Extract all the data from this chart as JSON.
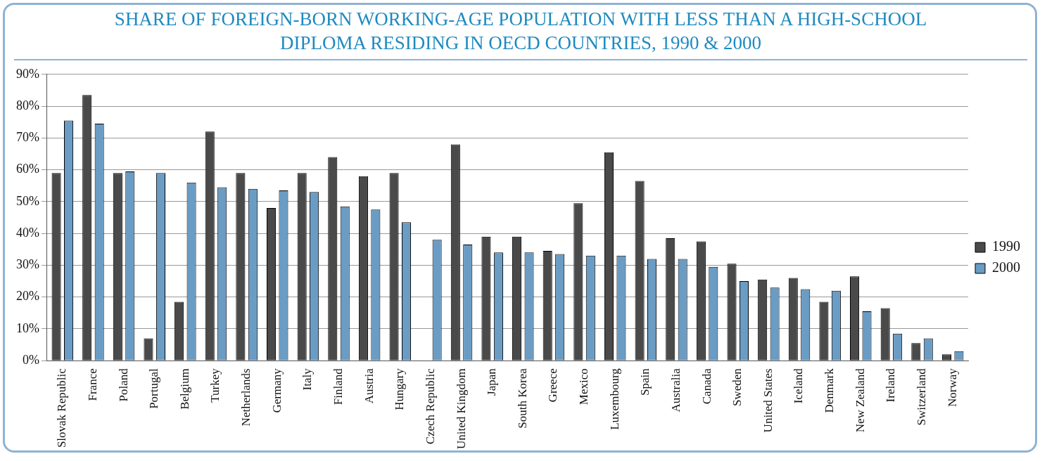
{
  "chart_data": {
    "type": "bar",
    "title": "SHARE OF FOREIGN-BORN WORKING-AGE POPULATION WITH LESS THAN A HIGH-SCHOOL DIPLOMA RESIDING IN OECD COUNTRIES, 1990 & 2000",
    "categories": [
      "Slovak Republic",
      "France",
      "Poland",
      "Portugal",
      "Belgium",
      "Turkey",
      "Netherlands",
      "Germany",
      "Italy",
      "Finland",
      "Austria",
      "Hungary",
      "Czech Republic",
      "United Kingdom",
      "Japan",
      "South Korea",
      "Greece",
      "Mexico",
      "Luxembourg",
      "Spain",
      "Australia",
      "Canada",
      "Sweden",
      "United States",
      "Iceland",
      "Denmark",
      "New Zealand",
      "Ireland",
      "Switzerland",
      "Norway"
    ],
    "series": [
      {
        "name": "1990",
        "color": "#4a4a4a",
        "values": [
          59,
          83.5,
          59,
          7,
          18.5,
          72,
          59,
          48,
          59,
          64,
          58,
          59,
          null,
          68,
          39,
          39,
          34.5,
          49.5,
          65.5,
          56.5,
          38.5,
          37.5,
          30.5,
          25.5,
          26,
          18.5,
          26.5,
          16.5,
          5.5,
          2
        ]
      },
      {
        "name": "2000",
        "color": "#6a9cc4",
        "values": [
          75.5,
          74.5,
          59.5,
          59,
          56,
          54.5,
          54,
          53.5,
          53,
          48.5,
          47.5,
          43.5,
          38,
          36.5,
          34,
          34,
          33.5,
          33,
          33,
          32,
          32,
          29.5,
          25,
          23,
          22.5,
          22,
          15.5,
          8.5,
          7,
          3
        ]
      }
    ],
    "ylim": [
      0,
      90
    ],
    "yticks": [
      {
        "value": 0,
        "label": "0%"
      },
      {
        "value": 10,
        "label": "10%"
      },
      {
        "value": 20,
        "label": "20%"
      },
      {
        "value": 30,
        "label": "30%"
      },
      {
        "value": 40,
        "label": "40%"
      },
      {
        "value": 50,
        "label": "50%"
      },
      {
        "value": 60,
        "label": "60%"
      },
      {
        "value": 70,
        "label": "70%"
      },
      {
        "value": 80,
        "label": "80%"
      },
      {
        "value": 90,
        "label": "90%"
      }
    ],
    "grid": "y",
    "legend": "right"
  }
}
